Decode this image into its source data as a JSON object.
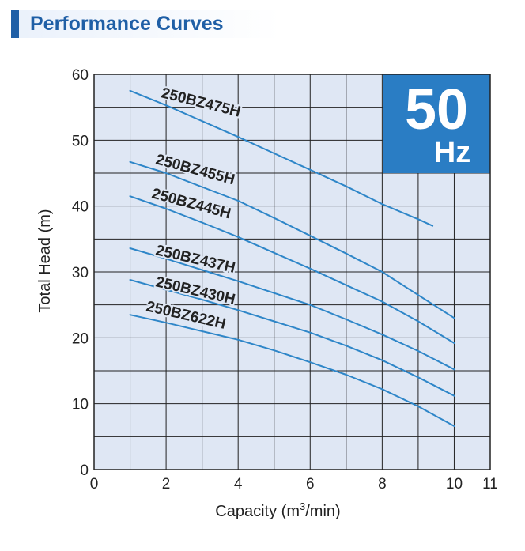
{
  "header": {
    "title": "Performance Curves"
  },
  "badge": {
    "value": "50",
    "unit": "Hz",
    "color": "#2a7dc4"
  },
  "colors": {
    "curve": "#2e86c8",
    "plot_bg": "#dfe7f4",
    "grid": "#222222",
    "accent": "#1f5fa6"
  },
  "chart_data": {
    "type": "line",
    "title": "",
    "xlabel": "Capacity (m³/min)",
    "xlabel_parts": {
      "pre": "Capacity (m",
      "sup": "3",
      "post": "/min)"
    },
    "ylabel": "Total Head (m)",
    "xlim": [
      0,
      11
    ],
    "ylim": [
      0,
      60
    ],
    "xticks": [
      "0",
      "2",
      "4",
      "6",
      "8",
      "10",
      "11"
    ],
    "yticks": [
      "0",
      "10",
      "20",
      "30",
      "40",
      "50",
      "60"
    ],
    "grid": true,
    "series": [
      {
        "name": "250BZ475H",
        "x": [
          1,
          2,
          3,
          4,
          5,
          6,
          7,
          8,
          9,
          9.4
        ],
        "y": [
          57.5,
          55.3,
          52.9,
          50.5,
          48,
          45.5,
          43,
          40.3,
          38,
          37
        ]
      },
      {
        "name": "250BZ455H",
        "x": [
          1,
          2,
          3,
          4,
          5,
          6,
          7,
          8,
          9,
          10
        ],
        "y": [
          46.7,
          45,
          42.9,
          40.8,
          38.2,
          35.5,
          32.8,
          30,
          26.5,
          23
        ]
      },
      {
        "name": "250BZ445H",
        "x": [
          1,
          2,
          3,
          4,
          5,
          6,
          7,
          8,
          9,
          10
        ],
        "y": [
          41.5,
          39.6,
          37.5,
          35.3,
          32.9,
          30.5,
          28,
          25.5,
          22.5,
          19.2
        ]
      },
      {
        "name": "250BZ437H",
        "x": [
          1,
          2,
          3,
          4,
          5,
          6,
          7,
          8,
          9,
          10
        ],
        "y": [
          33.6,
          32,
          30.3,
          28.6,
          26.8,
          25,
          22.8,
          20.5,
          18,
          15.2
        ]
      },
      {
        "name": "250BZ430H",
        "x": [
          1,
          2,
          3,
          4,
          5,
          6,
          7,
          8,
          9,
          10
        ],
        "y": [
          28.8,
          27.3,
          25.8,
          24.2,
          22.5,
          20.8,
          18.8,
          16.6,
          14,
          11.2
        ]
      },
      {
        "name": "250BZ622H",
        "x": [
          1,
          2,
          3,
          4,
          5,
          6,
          7,
          8,
          9,
          10
        ],
        "y": [
          23.5,
          22.3,
          21,
          19.7,
          18.1,
          16.3,
          14.4,
          12.2,
          9.6,
          6.6
        ]
      }
    ]
  }
}
